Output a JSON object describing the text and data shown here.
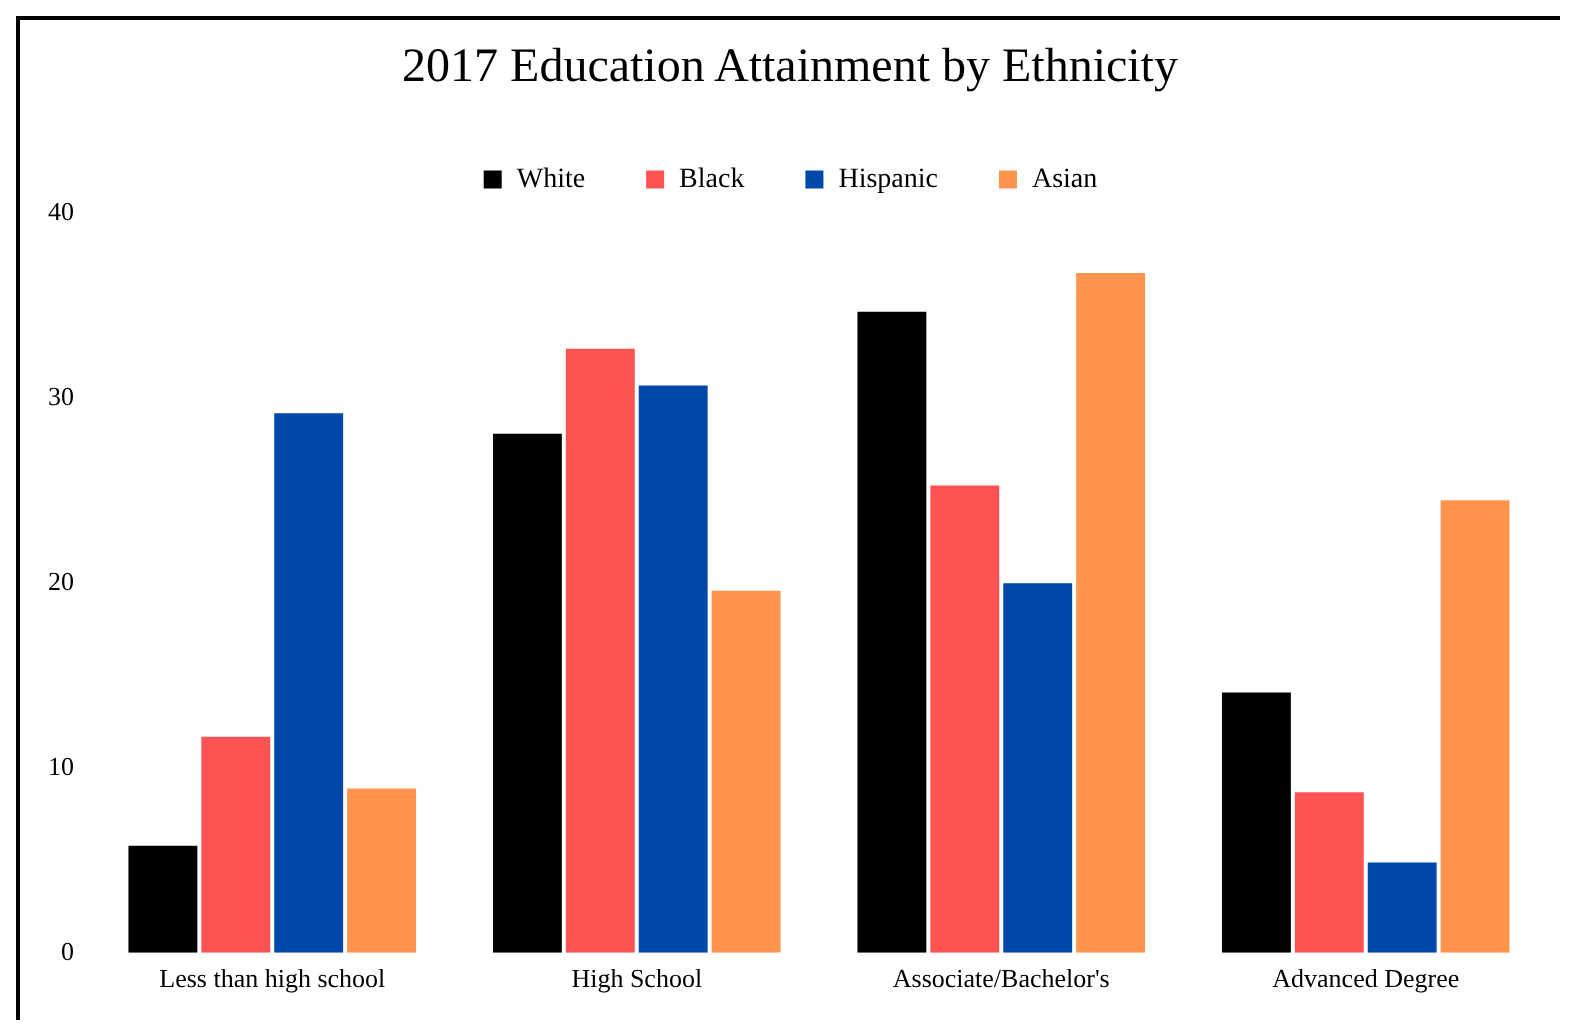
{
  "chart_data": {
    "type": "bar",
    "title": "2017 Education Attainment by Ethnicity",
    "categories": [
      "Less than high school",
      "High School",
      "Associate/Bachelor's",
      "Advanced Degree"
    ],
    "series": [
      {
        "name": "White",
        "color": "#000000",
        "values": [
          5.9,
          28.2,
          34.8,
          14.2
        ]
      },
      {
        "name": "Black",
        "color": "#ff5252",
        "values": [
          11.8,
          32.8,
          25.4,
          8.8
        ]
      },
      {
        "name": "Hispanic",
        "color": "#0047ab",
        "values": [
          29.3,
          30.8,
          20.1,
          5.0
        ]
      },
      {
        "name": "Asian",
        "color": "#ff944d",
        "values": [
          9.0,
          19.7,
          36.9,
          24.6
        ]
      }
    ],
    "ylim": [
      0,
      40
    ],
    "yticks": [
      0,
      10,
      20,
      30,
      40
    ],
    "grid": false,
    "legend": "top"
  }
}
